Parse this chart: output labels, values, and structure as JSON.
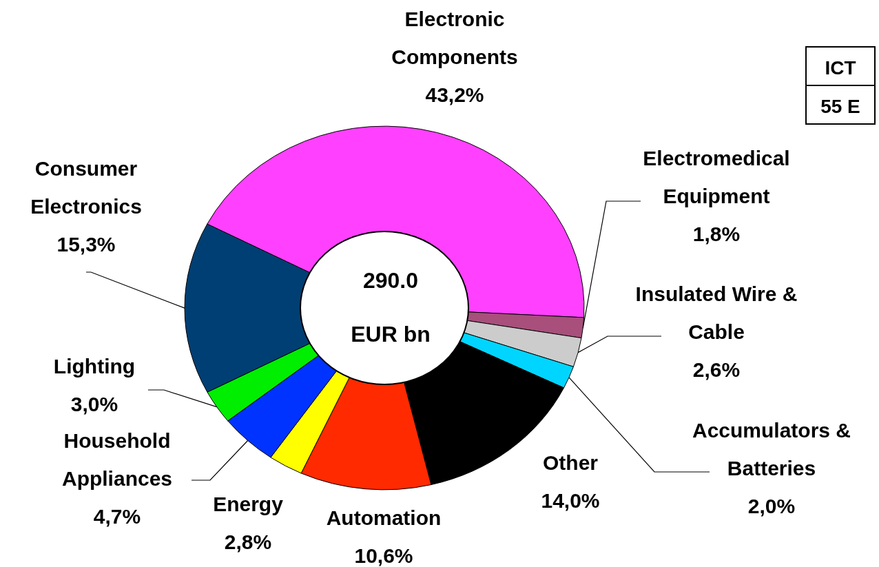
{
  "chart_data": {
    "type": "donut",
    "categories": [
      "Electronic Components",
      "Electromedical Equipment",
      "Insulated Wire & Cable",
      "Accumulators & Batteries",
      "Other",
      "Automation",
      "Energy",
      "Household Appliances",
      "Lighting",
      "Consumer Electronics"
    ],
    "values": [
      43.2,
      1.8,
      2.6,
      2.0,
      14.0,
      10.6,
      2.8,
      4.7,
      3.0,
      15.3
    ],
    "value_labels": [
      "43,2%",
      "1,8%",
      "2,6%",
      "2,0%",
      "14,0%",
      "10,6%",
      "2,8%",
      "4,7%",
      "3,0%",
      "15,3%"
    ],
    "colors": [
      "#ff40ff",
      "#a84f7c",
      "#cccccc",
      "#00d5ff",
      "#000000",
      "#ff2a00",
      "#ffff00",
      "#0033ff",
      "#00ee00",
      "#003f73"
    ],
    "annotations": [
      "290.0",
      "EUR bn",
      "ICT",
      "55 E"
    ]
  }
}
